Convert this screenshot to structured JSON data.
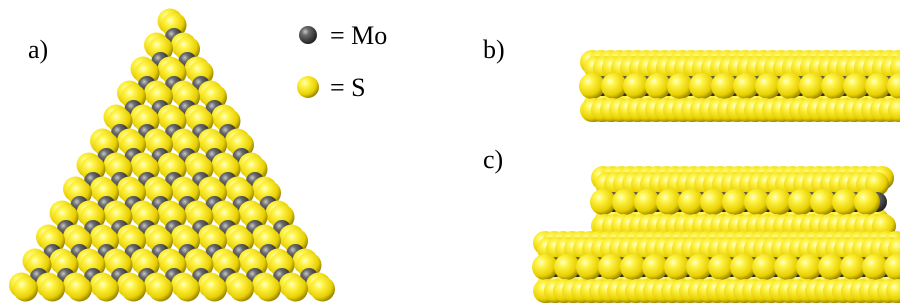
{
  "panels": [
    {
      "label": "a)"
    },
    {
      "label": "b)"
    },
    {
      "label": "c)"
    }
  ],
  "legend": [
    {
      "label": "= Mo"
    },
    {
      "label": "= S"
    }
  ]
}
